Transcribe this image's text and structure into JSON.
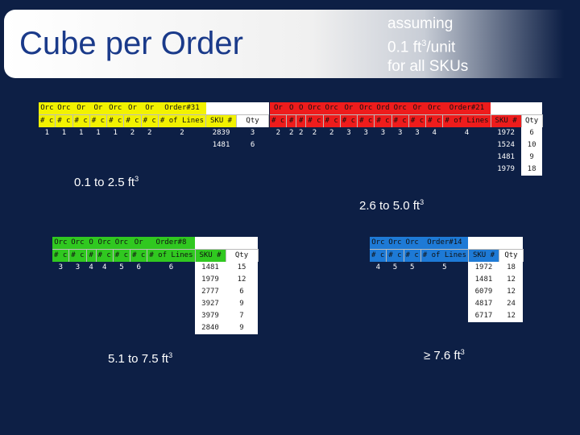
{
  "title": "Cube per Order",
  "assumption": {
    "line1": "assuming",
    "line2a": "0.1 ft",
    "line2sup": "3",
    "line2b": "/unit",
    "line3": "for all SKUs"
  },
  "ranges": {
    "small": {
      "text": "0.1 to 2.5 ft",
      "sup": "3"
    },
    "mid": {
      "text": "2.6 to 5.0 ft",
      "sup": "3"
    },
    "large": {
      "text": "5.1 to 7.5 ft",
      "sup": "3"
    },
    "xl": {
      "text": "≥ 7.6 ft",
      "sup": "3"
    }
  },
  "tables": {
    "yellow": {
      "header": [
        "Orc",
        "Orc",
        "Or",
        "Or",
        "Orc",
        "Or",
        "Or",
        "Order#31",
        "",
        ""
      ],
      "sub": [
        "# c",
        "# c",
        "# c",
        "# c",
        "# c",
        "# c",
        "# c",
        "# of Lines",
        "SKU #",
        "Qty"
      ],
      "lines_row": [
        "1",
        "1",
        "1",
        "1",
        "1",
        "2",
        "2",
        "2"
      ],
      "sku_rows": [
        [
          "2839",
          "3"
        ],
        [
          "1481",
          "6"
        ]
      ]
    },
    "red": {
      "header": [
        "Or",
        "O",
        "O",
        "Orc",
        "Orc",
        "Or",
        "Orc",
        "Ord",
        "Orc",
        "Or",
        "Orc",
        "Order#21",
        "",
        ""
      ],
      "sub": [
        "# c",
        "#",
        "#",
        "# c",
        "# c",
        "# c",
        "# c",
        "# c",
        "# c",
        "# c",
        "# c",
        "# of Lines",
        "SKU #",
        "Qty"
      ],
      "lines_row": [
        "2",
        "2",
        "2",
        "2",
        "2",
        "3",
        "3",
        "3",
        "3",
        "3",
        "4",
        "4"
      ],
      "sku_rows": [
        [
          "1972",
          "6"
        ],
        [
          "1524",
          "10"
        ],
        [
          "1481",
          "9"
        ],
        [
          "1979",
          "18"
        ]
      ]
    },
    "green": {
      "header": [
        "Orc",
        "Orc",
        "O",
        "Orc",
        "Orc",
        "Or",
        "Order#8",
        "",
        ""
      ],
      "sub": [
        "# c",
        "# c",
        "#",
        "# c",
        "# c",
        "# c",
        "# of Lines",
        "SKU #",
        "Qty"
      ],
      "lines_row": [
        "3",
        "3",
        "4",
        "4",
        "5",
        "6",
        "6"
      ],
      "sku_rows": [
        [
          "1481",
          "15"
        ],
        [
          "1979",
          "12"
        ],
        [
          "2777",
          "6"
        ],
        [
          "3927",
          "9"
        ],
        [
          "3979",
          "7"
        ],
        [
          "2840",
          "9"
        ]
      ]
    },
    "blue": {
      "header": [
        "Orc",
        "Orc",
        "Orc",
        "Order#14",
        "",
        ""
      ],
      "sub": [
        "# c",
        "# c",
        "# c",
        "# of Lines",
        "SKU #",
        "Qty"
      ],
      "lines_row": [
        "4",
        "5",
        "5",
        "5"
      ],
      "sku_rows": [
        [
          "1972",
          "18"
        ],
        [
          "1481",
          "12"
        ],
        [
          "6079",
          "12"
        ],
        [
          "4817",
          "24"
        ],
        [
          "6717",
          "12"
        ]
      ]
    }
  }
}
